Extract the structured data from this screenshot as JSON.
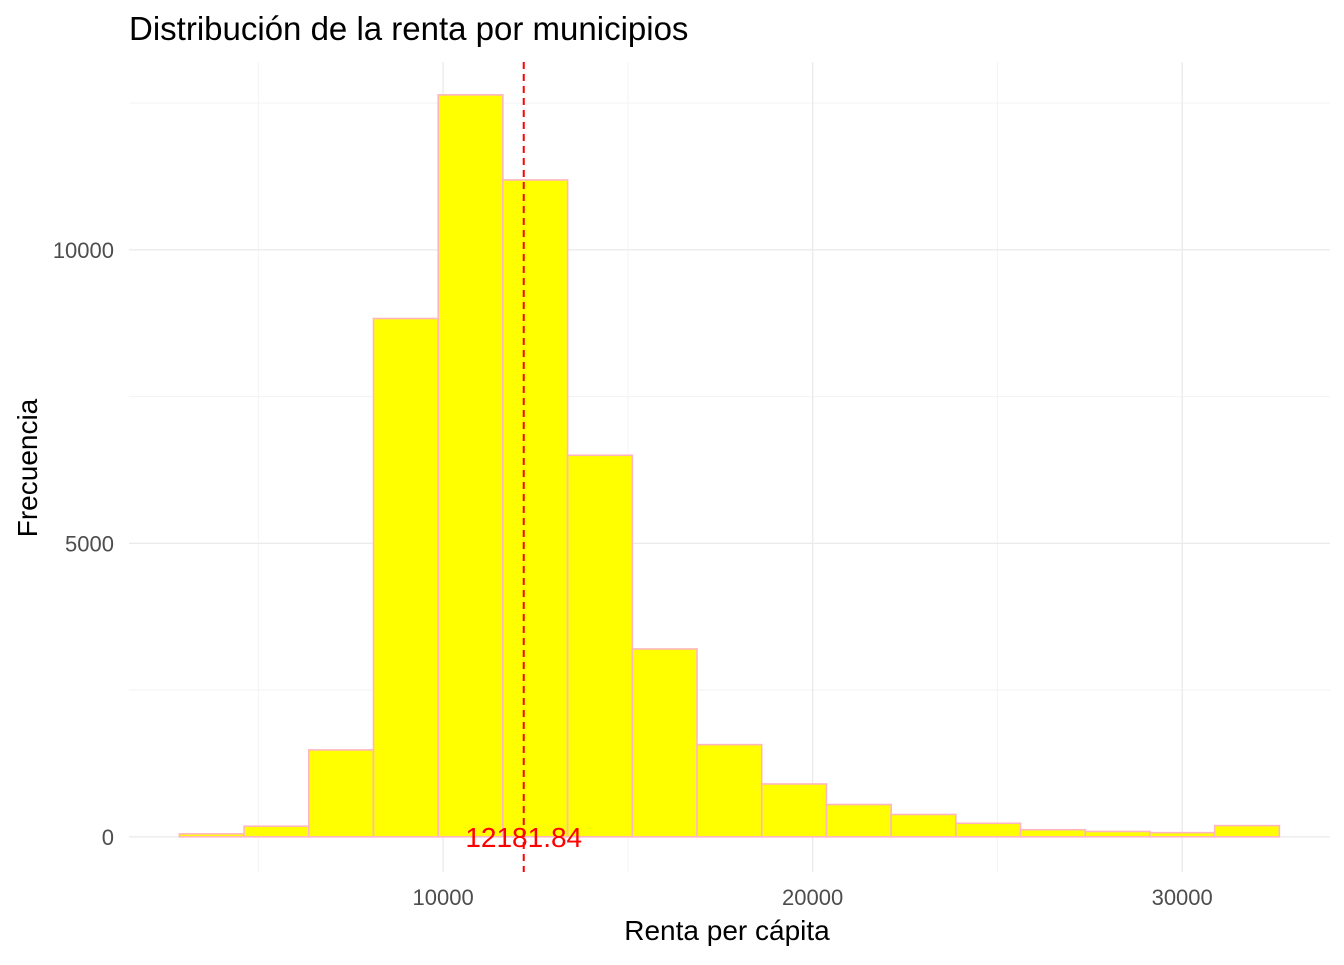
{
  "chart_data": {
    "type": "bar",
    "title": "Distribución de la renta por municipios",
    "xlabel": "Renta per cápita",
    "ylabel": "Frecuencia",
    "bin_width": 1751,
    "bins": [
      {
        "x_start": 2863,
        "x_end": 4614,
        "count": 50
      },
      {
        "x_start": 4614,
        "x_end": 6365,
        "count": 180
      },
      {
        "x_start": 6365,
        "x_end": 8116,
        "count": 1480
      },
      {
        "x_start": 8116,
        "x_end": 9867,
        "count": 8830
      },
      {
        "x_start": 9867,
        "x_end": 11618,
        "count": 12640
      },
      {
        "x_start": 11618,
        "x_end": 13369,
        "count": 11190
      },
      {
        "x_start": 13369,
        "x_end": 15120,
        "count": 6500
      },
      {
        "x_start": 15120,
        "x_end": 16871,
        "count": 3200
      },
      {
        "x_start": 16871,
        "x_end": 18622,
        "count": 1570
      },
      {
        "x_start": 18622,
        "x_end": 20373,
        "count": 900
      },
      {
        "x_start": 20373,
        "x_end": 22124,
        "count": 550
      },
      {
        "x_start": 22124,
        "x_end": 23875,
        "count": 380
      },
      {
        "x_start": 23875,
        "x_end": 25626,
        "count": 230
      },
      {
        "x_start": 25626,
        "x_end": 27377,
        "count": 120
      },
      {
        "x_start": 27377,
        "x_end": 29128,
        "count": 90
      },
      {
        "x_start": 29128,
        "x_end": 30879,
        "count": 70
      },
      {
        "x_start": 30879,
        "x_end": 32630,
        "count": 190
      }
    ],
    "xlim": [
      1500,
      34000
    ],
    "ylim": [
      -600,
      13200
    ],
    "x_ticks": [
      10000,
      20000,
      30000
    ],
    "x_tick_labels": [
      "10000",
      "20000",
      "30000"
    ],
    "y_ticks": [
      0,
      5000,
      10000
    ],
    "y_tick_labels": [
      "0",
      "5000",
      "10000"
    ],
    "mean": {
      "value": 12181.84,
      "label": "12181.84",
      "label_y": 0,
      "color": "#ff0000"
    },
    "bar_fill": "#ffff00",
    "bar_stroke": "#ffb6c1",
    "grid": true,
    "legend": "none"
  }
}
